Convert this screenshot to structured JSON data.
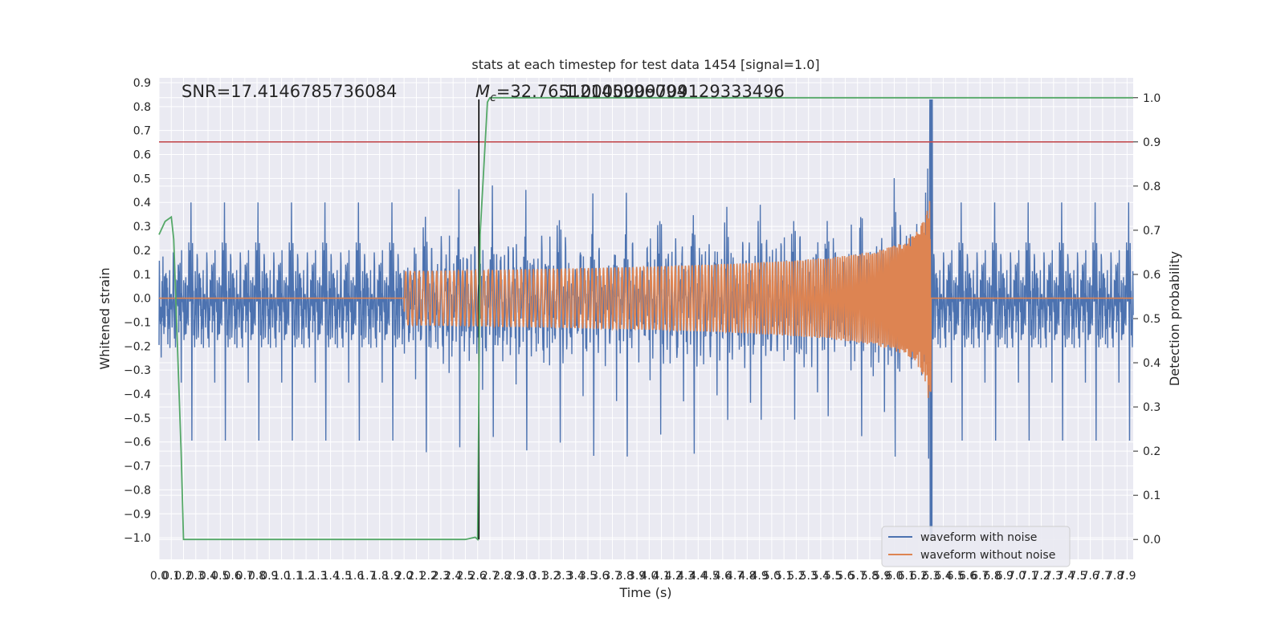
{
  "chart_data": {
    "type": "line",
    "title": "stats at each timestep for test data 1454 [signal=1.0]",
    "xlabel": "Time (s)",
    "ylabel": "Whitened strain",
    "y2label": "Detection probability",
    "xlim": [
      0.0,
      7.95
    ],
    "ylim": [
      -1.09,
      0.92
    ],
    "y2lim": [
      -0.045,
      1.045
    ],
    "x_ticks": [
      "0.0",
      "0.1",
      "0.2",
      "0.3",
      "0.4",
      "0.5",
      "0.6",
      "0.7",
      "0.8",
      "0.9",
      "1.0",
      "1.1",
      "1.2",
      "1.3",
      "1.4",
      "1.5",
      "1.6",
      "1.7",
      "1.8",
      "1.9",
      "2.0",
      "2.1",
      "2.2",
      "2.3",
      "2.4",
      "2.5",
      "2.6",
      "2.7",
      "2.8",
      "2.9",
      "3.0",
      "3.1",
      "3.2",
      "3.3",
      "3.4",
      "3.5",
      "3.6",
      "3.7",
      "3.8",
      "3.9",
      "4.0",
      "4.1",
      "4.2",
      "4.3",
      "4.4",
      "4.5",
      "4.6",
      "4.7",
      "4.8",
      "4.9",
      "5.0",
      "5.1",
      "5.2",
      "5.3",
      "5.4",
      "5.5",
      "5.6",
      "5.7",
      "5.8",
      "5.9",
      "6.0",
      "6.1",
      "6.2",
      "6.3",
      "6.4",
      "6.5",
      "6.6",
      "6.7",
      "6.8",
      "6.9",
      "7.0",
      "7.1",
      "7.2",
      "7.3",
      "7.4",
      "7.5",
      "7.6",
      "7.7",
      "7.8",
      "7.9"
    ],
    "y_ticks": [
      "0.9",
      "0.8",
      "0.7",
      "0.6",
      "0.5",
      "0.4",
      "0.3",
      "0.2",
      "0.1",
      "0.0",
      "−0.1",
      "−0.2",
      "−0.3",
      "−0.4",
      "−0.5",
      "−0.6",
      "−0.7",
      "−0.8",
      "−0.9",
      "−1.0"
    ],
    "y_tick_values": [
      0.9,
      0.8,
      0.7,
      0.6,
      0.5,
      0.4,
      0.3,
      0.2,
      0.1,
      0.0,
      -0.1,
      -0.2,
      -0.3,
      -0.4,
      -0.5,
      -0.6,
      -0.7,
      -0.8,
      -0.9,
      -1.0
    ],
    "y2_ticks": [
      "0.0",
      "0.1",
      "0.2",
      "0.3",
      "0.4",
      "0.5",
      "0.6",
      "0.7",
      "0.8",
      "0.9",
      "1.0"
    ],
    "y2_tick_values": [
      0.0,
      0.1,
      0.2,
      0.3,
      0.4,
      0.5,
      0.6,
      0.7,
      0.8,
      0.9,
      1.0
    ],
    "annotations": {
      "snr": "SNR=17.4146785736084",
      "mc_symbol": "M",
      "mc_subscript": "c",
      "mc_value": "=32.76512145996094",
      "overlap": "1.0000009709129333496"
    },
    "threshold_line": {
      "axis": "y2",
      "value": 0.9,
      "color": "#c44e52"
    },
    "trigger_line": {
      "x": 2.61,
      "color": "#000000"
    },
    "series": [
      {
        "name": "waveform with noise",
        "axis": "y",
        "color": "#4c72b0",
        "description_values": {
          "typical_amplitude": 0.28,
          "max": 0.83,
          "min": -1.0,
          "peak_time": 6.3
        }
      },
      {
        "name": "waveform without noise",
        "axis": "y",
        "color": "#dd8452",
        "chirp": {
          "start": 2.0,
          "merger": 6.3,
          "peak_amplitude": 0.72
        }
      },
      {
        "name": "",
        "axis": "y2",
        "color": "#55a868",
        "x": [
          0.0,
          0.05,
          0.1,
          0.12,
          0.18,
          0.2,
          0.3,
          0.5,
          1.0,
          1.5,
          2.0,
          2.5,
          2.58,
          2.6,
          2.62,
          2.68,
          2.7,
          2.75,
          3.0,
          4.0,
          5.0,
          6.0,
          7.0,
          7.95
        ],
        "values": [
          0.69,
          0.72,
          0.73,
          0.68,
          0.2,
          0.0,
          0.0,
          0.0,
          0.0,
          0.0,
          0.0,
          0.0,
          0.005,
          0.0,
          0.69,
          0.99,
          1.0,
          1.0,
          1.0,
          1.0,
          1.0,
          1.0,
          1.0,
          1.0
        ]
      }
    ],
    "legend": {
      "location": "lower-right",
      "entries": [
        "waveform with noise",
        "waveform without noise"
      ]
    },
    "grid": true,
    "colors": {
      "background": "#eaeaf2",
      "grid": "#ffffff"
    }
  }
}
